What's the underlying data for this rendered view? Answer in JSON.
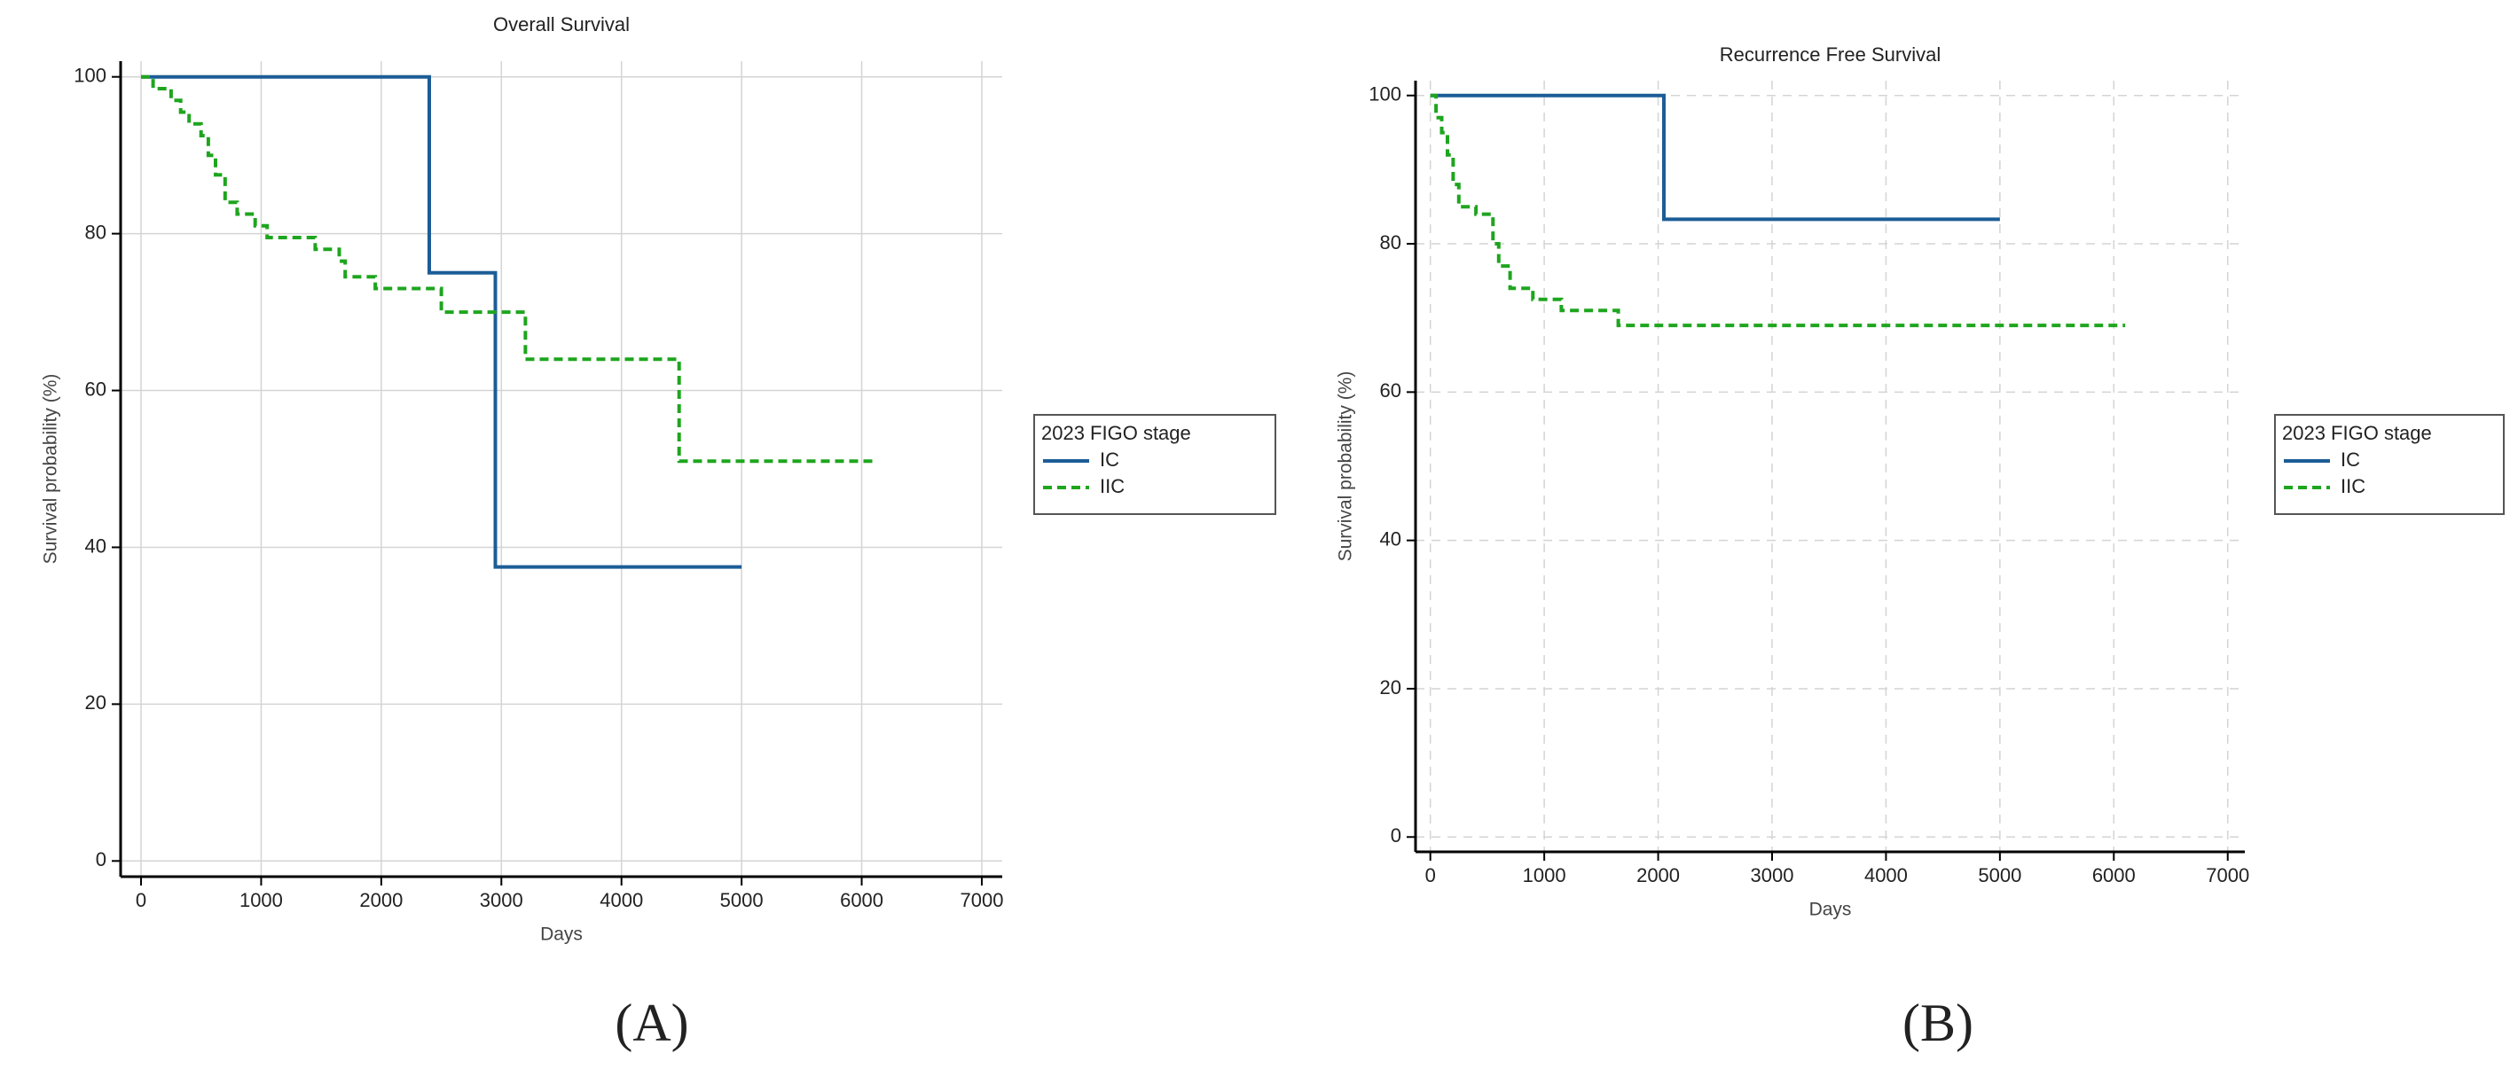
{
  "chart_data": [
    {
      "type": "step",
      "panel_label": "(A)",
      "title": "Overall Survival",
      "x_label": "Days",
      "y_label": "Survival probability (%)",
      "legend_title": "2023 FIGO stage",
      "legend": "right",
      "grid": true,
      "grid_style": "solid",
      "xlim": [
        -170,
        7170
      ],
      "ylim": [
        -2,
        102
      ],
      "xticks": [
        0,
        1000,
        2000,
        3000,
        4000,
        5000,
        6000,
        7000
      ],
      "yticks": [
        0,
        20,
        40,
        60,
        80,
        100
      ],
      "series": [
        {
          "name": "IC",
          "color": "#1c5d96",
          "line_style": "solid",
          "x": [
            0,
            2400,
            2400,
            2950,
            2950,
            5000
          ],
          "values": [
            100,
            100,
            75,
            75,
            37.5,
            37.5
          ]
        },
        {
          "name": "IIC",
          "color": "#1ea51e",
          "line_style": "dashed",
          "x": [
            0,
            100,
            100,
            250,
            250,
            330,
            330,
            400,
            400,
            500,
            500,
            560,
            560,
            620,
            620,
            700,
            700,
            800,
            800,
            950,
            950,
            1050,
            1050,
            1450,
            1450,
            1650,
            1650,
            1700,
            1700,
            1950,
            1950,
            2500,
            2500,
            3200,
            3200,
            4480,
            4480,
            6100
          ],
          "values": [
            100,
            100,
            98.5,
            98.5,
            97,
            97,
            95.5,
            95.5,
            94,
            94,
            92.5,
            92.5,
            90,
            90,
            87.5,
            87.5,
            84,
            84,
            82.5,
            82.5,
            81,
            81,
            79.5,
            79.5,
            78,
            78,
            76.5,
            76.5,
            74.5,
            74.5,
            73,
            73,
            70,
            70,
            64,
            64,
            51,
            51
          ]
        }
      ]
    },
    {
      "type": "step",
      "panel_label": "(B)",
      "title": "Recurrence Free Survival",
      "x_label": "Days",
      "y_label": "Survival probability (%)",
      "legend_title": "2023 FIGO stage",
      "legend": "right",
      "grid": true,
      "grid_style": "dashed",
      "xlim": [
        -130,
        7150
      ],
      "ylim": [
        -2,
        102
      ],
      "xticks": [
        0,
        1000,
        2000,
        3000,
        4000,
        5000,
        6000,
        7000
      ],
      "yticks": [
        0,
        20,
        40,
        60,
        80,
        100
      ],
      "series": [
        {
          "name": "IC",
          "color": "#1c5d96",
          "line_style": "solid",
          "x": [
            0,
            2050,
            2050,
            5000
          ],
          "values": [
            100,
            100,
            83.3,
            83.3
          ]
        },
        {
          "name": "IIC",
          "color": "#1ea51e",
          "line_style": "dashed",
          "x": [
            0,
            50,
            50,
            100,
            100,
            150,
            150,
            200,
            200,
            250,
            250,
            400,
            400,
            550,
            550,
            600,
            600,
            700,
            700,
            900,
            900,
            1150,
            1150,
            1650,
            1650,
            6100
          ],
          "values": [
            100,
            100,
            97,
            97,
            95,
            95,
            92,
            92,
            88,
            88,
            85,
            85,
            84,
            84,
            80,
            80,
            77,
            77,
            74,
            74,
            72.5,
            72.5,
            71,
            71,
            69,
            69
          ]
        }
      ]
    }
  ]
}
